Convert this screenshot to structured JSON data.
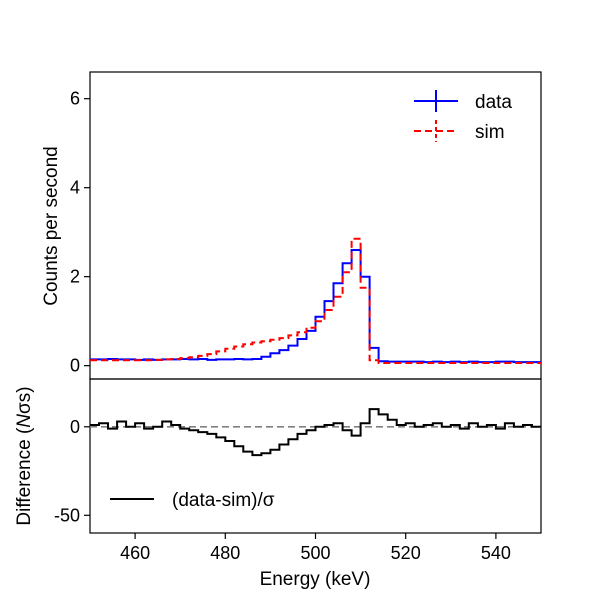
{
  "chart_data": [
    {
      "type": "line",
      "panel": "top",
      "xlim": [
        450,
        550
      ],
      "ylim": [
        -0.3,
        6.6
      ],
      "yticks": [
        0,
        2,
        4,
        6
      ],
      "ylabel": "Counts per second",
      "legend": {
        "placement": "top-right",
        "entries": [
          "data",
          "sim"
        ]
      },
      "series": [
        {
          "name": "data",
          "color": "#0000ff",
          "style": "solid-step",
          "x": [
            450,
            452,
            454,
            456,
            458,
            460,
            462,
            464,
            466,
            468,
            470,
            472,
            474,
            476,
            478,
            480,
            482,
            484,
            486,
            488,
            490,
            492,
            494,
            496,
            498,
            500,
            502,
            504,
            506,
            508,
            510,
            512,
            514,
            516,
            518,
            520,
            522,
            524,
            526,
            528,
            530,
            532,
            534,
            536,
            538,
            540,
            542,
            544,
            546,
            548,
            550
          ],
          "y": [
            0.14,
            0.14,
            0.15,
            0.14,
            0.14,
            0.13,
            0.14,
            0.13,
            0.14,
            0.14,
            0.15,
            0.14,
            0.15,
            0.13,
            0.14,
            0.14,
            0.15,
            0.14,
            0.15,
            0.2,
            0.28,
            0.35,
            0.45,
            0.6,
            0.78,
            1.1,
            1.45,
            1.85,
            2.3,
            2.6,
            2.0,
            0.4,
            0.1,
            0.09,
            0.09,
            0.09,
            0.09,
            0.08,
            0.09,
            0.08,
            0.09,
            0.08,
            0.09,
            0.08,
            0.08,
            0.09,
            0.09,
            0.08,
            0.08,
            0.08,
            0.08
          ]
        },
        {
          "name": "sim",
          "color": "#ff0000",
          "style": "dashed-step",
          "x": [
            450,
            452,
            454,
            456,
            458,
            460,
            462,
            464,
            466,
            468,
            470,
            472,
            474,
            476,
            478,
            480,
            482,
            484,
            486,
            488,
            490,
            492,
            494,
            496,
            498,
            500,
            502,
            504,
            506,
            508,
            510,
            512,
            514,
            516,
            518,
            520,
            522,
            524,
            526,
            528,
            530,
            532,
            534,
            536,
            538,
            540,
            542,
            544,
            546,
            548,
            550
          ],
          "y": [
            0.12,
            0.12,
            0.12,
            0.12,
            0.12,
            0.12,
            0.12,
            0.13,
            0.14,
            0.15,
            0.17,
            0.19,
            0.22,
            0.26,
            0.32,
            0.38,
            0.43,
            0.48,
            0.52,
            0.55,
            0.58,
            0.62,
            0.68,
            0.75,
            0.85,
            1.0,
            1.25,
            1.55,
            2.1,
            2.85,
            1.75,
            0.12,
            0.06,
            0.06,
            0.06,
            0.06,
            0.06,
            0.06,
            0.06,
            0.06,
            0.06,
            0.06,
            0.06,
            0.06,
            0.06,
            0.06,
            0.06,
            0.06,
            0.06,
            0.06,
            0.06
          ]
        }
      ]
    },
    {
      "type": "line",
      "panel": "bottom",
      "xlim": [
        450,
        550
      ],
      "ylim": [
        -60,
        27
      ],
      "yticks": [
        0,
        -50
      ],
      "xticks": [
        460,
        480,
        500,
        520,
        540
      ],
      "xlabel": "Energy (keV)",
      "ylabel": "Difference (Nσs)",
      "reference_line": {
        "y": 0,
        "color": "#808080",
        "style": "dashed"
      },
      "legend": {
        "placement": "bottom-left",
        "entries": [
          "(data-sim)/σ"
        ]
      },
      "series": [
        {
          "name": "(data-sim)/σ",
          "color": "#000000",
          "style": "solid-step",
          "x": [
            450,
            452,
            454,
            456,
            458,
            460,
            462,
            464,
            466,
            468,
            470,
            472,
            474,
            476,
            478,
            480,
            482,
            484,
            486,
            488,
            490,
            492,
            494,
            496,
            498,
            500,
            502,
            504,
            506,
            508,
            510,
            512,
            514,
            516,
            518,
            520,
            522,
            524,
            526,
            528,
            530,
            532,
            534,
            536,
            538,
            540,
            542,
            544,
            546,
            548,
            550
          ],
          "y": [
            1,
            2,
            -1,
            3,
            0,
            2,
            -1,
            0,
            3,
            1,
            -1,
            -2,
            -3,
            -4,
            -6,
            -8,
            -11,
            -14,
            -16,
            -15,
            -13,
            -10,
            -7,
            -4,
            -2,
            0,
            1,
            2,
            -2,
            -5,
            2,
            10,
            7,
            4,
            1,
            2,
            0,
            1,
            2,
            0,
            1,
            -1,
            2,
            0,
            1,
            -1,
            2,
            0,
            1,
            0,
            2
          ]
        }
      ]
    }
  ],
  "legend_labels": {
    "data": "data",
    "sim": "sim",
    "diff": "(data-sim)/σ"
  },
  "ylabel_top": "Counts per second",
  "ylabel_bottom_pre": "Difference (",
  "ylabel_bottom_N": "N",
  "ylabel_bottom_sigma": "σs)",
  "xlabel": "Energy (keV)"
}
